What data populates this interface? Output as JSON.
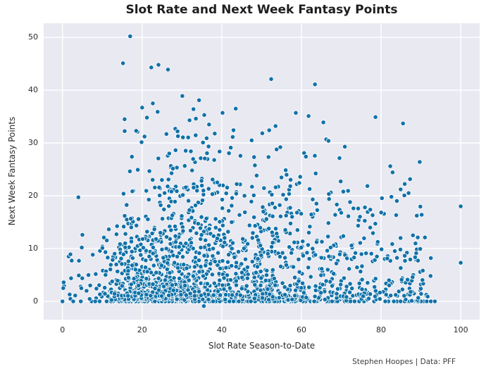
{
  "title": "Slot Rate and Next Week Fantasy Points",
  "attribution": "Stephen Hoopes | Data: PFF",
  "chart_data": {
    "type": "scatter",
    "title": "Slot Rate and Next Week Fantasy Points",
    "xlabel": "Slot Rate Season-to-Date",
    "ylabel": "Next Week Fantasy Points",
    "x_ticks": [
      0,
      20,
      40,
      60,
      80,
      100
    ],
    "y_ticks": [
      0,
      10,
      20,
      30,
      40,
      50
    ],
    "xlim": [
      -4.72,
      104.75
    ],
    "ylim": [
      -3.47,
      52.67
    ],
    "grid": true,
    "grid_color": "#ffffff",
    "legend": false,
    "plot_background": "#e9e9f2",
    "marker": {
      "color": "#1172a8",
      "edge_color": "#ffffff",
      "radius": 3.2,
      "edge_width": 0.8
    },
    "notable_points": [
      [
        17.0,
        50.2
      ],
      [
        15.2,
        45.1
      ],
      [
        22.3,
        44.3
      ],
      [
        24.1,
        44.8
      ],
      [
        26.5,
        43.9
      ],
      [
        52.4,
        42.1
      ],
      [
        63.4,
        41.1
      ],
      [
        30.1,
        38.9
      ],
      [
        34.3,
        38.1
      ],
      [
        22.7,
        37.5
      ],
      [
        20.0,
        36.7
      ],
      [
        23.9,
        35.9
      ],
      [
        32.9,
        36.4
      ],
      [
        35.6,
        35.3
      ],
      [
        40.2,
        35.7
      ],
      [
        43.5,
        36.5
      ],
      [
        58.6,
        35.7
      ],
      [
        61.8,
        35.1
      ],
      [
        78.6,
        34.9
      ],
      [
        85.5,
        33.7
      ],
      [
        65.5,
        33.9
      ],
      [
        53.5,
        33.2
      ],
      [
        51.9,
        32.4
      ],
      [
        15.6,
        34.5
      ],
      [
        21.2,
        34.8
      ],
      [
        31.9,
        34.3
      ],
      [
        36.8,
        33.5
      ],
      [
        33.5,
        34.6
      ],
      [
        28.9,
        32.2
      ],
      [
        26.1,
        31.7
      ],
      [
        36.2,
        30.9
      ],
      [
        47.5,
        30.5
      ],
      [
        54.7,
        29.2
      ],
      [
        66.8,
        30.4
      ],
      [
        70.9,
        29.3
      ],
      [
        89.7,
        26.4
      ],
      [
        82.3,
        25.6
      ],
      [
        100.0,
        18.0
      ],
      [
        100.0,
        7.3
      ],
      [
        35.5,
        -0.9
      ],
      [
        0.0,
        0.0
      ],
      [
        4.0,
        19.7
      ],
      [
        2.0,
        8.9
      ],
      [
        0.2,
        2.5
      ],
      [
        0.3,
        3.6
      ],
      [
        2.7,
        0.0
      ],
      [
        3.2,
        1.1
      ],
      [
        4.6,
        0.0
      ],
      [
        4.1,
        4.9
      ],
      [
        1.8,
        1.3
      ],
      [
        5.0,
        12.6
      ],
      [
        91.7,
        0.9
      ],
      [
        93.5,
        0.0
      ],
      [
        92.5,
        8.2
      ],
      [
        90.2,
        16.4
      ],
      [
        88.0,
        12.5
      ],
      [
        91.0,
        12.1
      ],
      [
        86.9,
        20.5
      ],
      [
        84.9,
        21.2
      ]
    ],
    "cloud": {
      "seed": 42,
      "strata": [
        {
          "count": 150,
          "x": {
            "type": "tri",
            "min": 6,
            "mode": 25,
            "max": 88
          },
          "y": {
            "type": "uniform",
            "min": 0.05,
            "max": 1.2
          }
        },
        {
          "count": 150,
          "x": {
            "type": "tri",
            "min": 5.5,
            "mode": 22,
            "max": 60
          },
          "y": {
            "type": "const",
            "value": 0
          }
        },
        {
          "count": 110,
          "x": {
            "type": "uniform",
            "min": 30,
            "max": 93
          },
          "y": {
            "type": "const",
            "value": 0
          }
        },
        {
          "count": 500,
          "x": {
            "type": "tri",
            "min": 6,
            "mode": 24,
            "max": 52
          },
          "y": {
            "type": "exp",
            "min": 0.2,
            "max": 10,
            "scale": 3.8
          }
        },
        {
          "count": 330,
          "x": {
            "type": "tri",
            "min": 7,
            "mode": 28,
            "max": 58
          },
          "y": {
            "type": "pow",
            "min": 1,
            "max": 16,
            "exp": 1.6
          }
        },
        {
          "count": 150,
          "x": {
            "type": "tri",
            "min": 9,
            "mode": 28,
            "max": 60
          },
          "y": {
            "type": "pow",
            "min": 10,
            "max": 22,
            "exp": 1.7
          }
        },
        {
          "count": 70,
          "x": {
            "type": "tri",
            "min": 10,
            "mode": 30,
            "max": 65
          },
          "y": {
            "type": "pow",
            "min": 20,
            "max": 28,
            "exp": 1.8
          }
        },
        {
          "count": 34,
          "x": {
            "type": "tri",
            "min": 10,
            "mode": 32,
            "max": 72
          },
          "y": {
            "type": "pow",
            "min": 27,
            "max": 33,
            "exp": 1.5
          }
        },
        {
          "count": 300,
          "x": {
            "type": "pow",
            "min": 48,
            "max": 93,
            "exp": 1.35
          },
          "y": {
            "type": "exp",
            "min": 0.1,
            "max": 10,
            "scale": 3.5
          }
        },
        {
          "count": 130,
          "x": {
            "type": "pow",
            "min": 48,
            "max": 90,
            "exp": 1.3
          },
          "y": {
            "type": "pow",
            "min": 8,
            "max": 18,
            "exp": 1.6
          }
        },
        {
          "count": 45,
          "x": {
            "type": "pow",
            "min": 50,
            "max": 88,
            "exp": 1.2
          },
          "y": {
            "type": "pow",
            "min": 16,
            "max": 25,
            "exp": 1.6
          }
        },
        {
          "count": 14,
          "x": {
            "type": "uniform",
            "min": 0.2,
            "max": 7
          },
          "y": {
            "type": "exp",
            "min": 0.1,
            "max": 14,
            "scale": 4
          }
        }
      ]
    }
  }
}
